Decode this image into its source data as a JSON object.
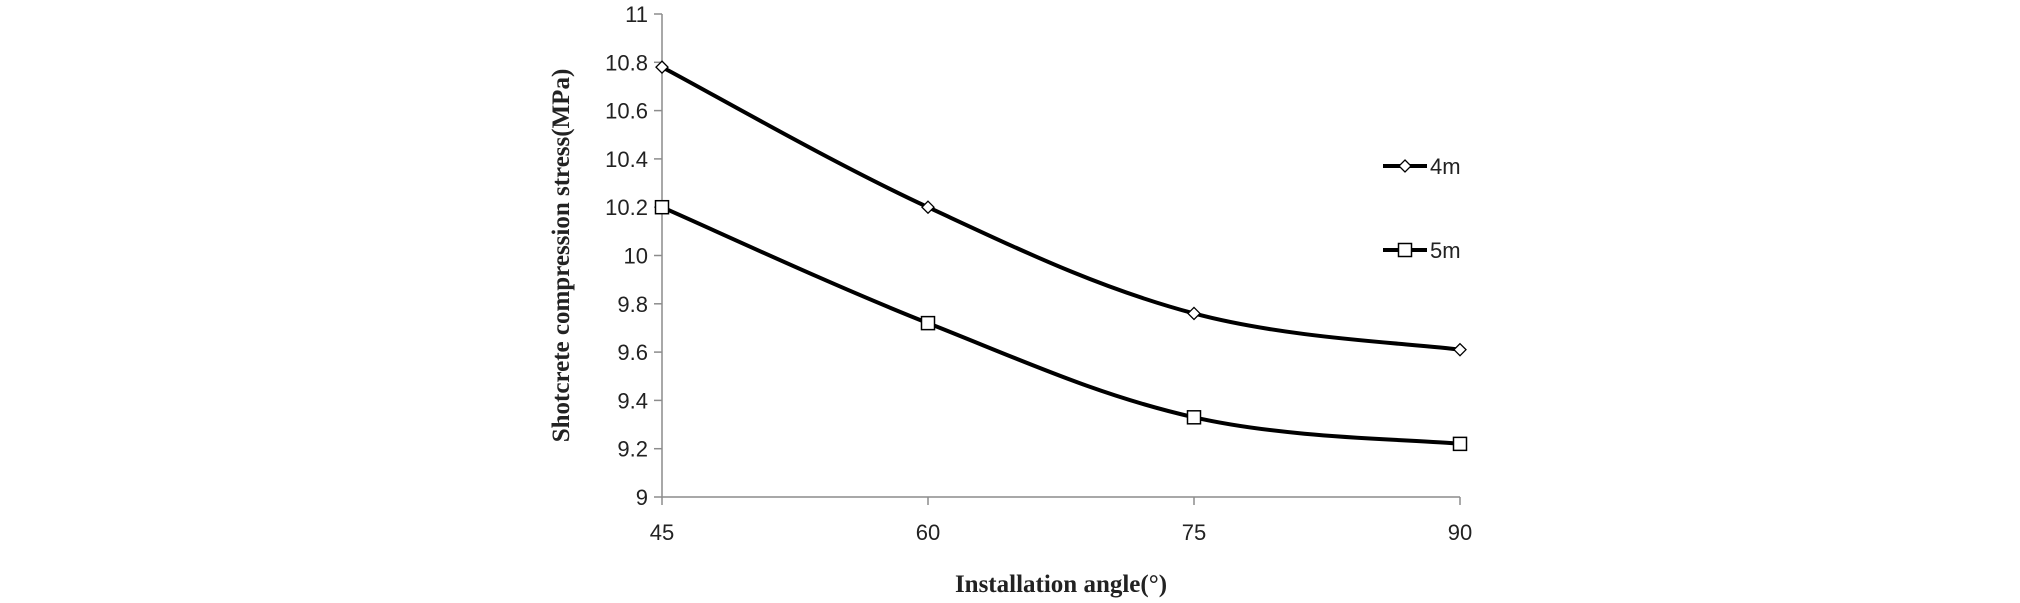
{
  "chart_data": {
    "type": "line",
    "title": "",
    "xlabel": "Installation angle(°)",
    "ylabel": "Shotcrete compression stress(MPa)",
    "x": [
      45,
      60,
      75,
      90
    ],
    "x_ticks": [
      "45",
      "60",
      "75",
      "90"
    ],
    "y_ticks": [
      "9",
      "9.2",
      "9.4",
      "9.6",
      "9.8",
      "10",
      "10.2",
      "10.4",
      "10.6",
      "10.8",
      "11"
    ],
    "ylim": [
      9,
      11
    ],
    "grid": false,
    "legend_position": "right",
    "series": [
      {
        "name": "4m",
        "marker": "diamond",
        "values": [
          10.78,
          10.2,
          9.76,
          9.61
        ]
      },
      {
        "name": "5m",
        "marker": "square",
        "values": [
          10.2,
          9.72,
          9.33,
          9.22
        ]
      }
    ],
    "colors": {
      "line": "#000000",
      "marker_fill": "#ffffff",
      "axis": "#8c8c8c"
    }
  }
}
